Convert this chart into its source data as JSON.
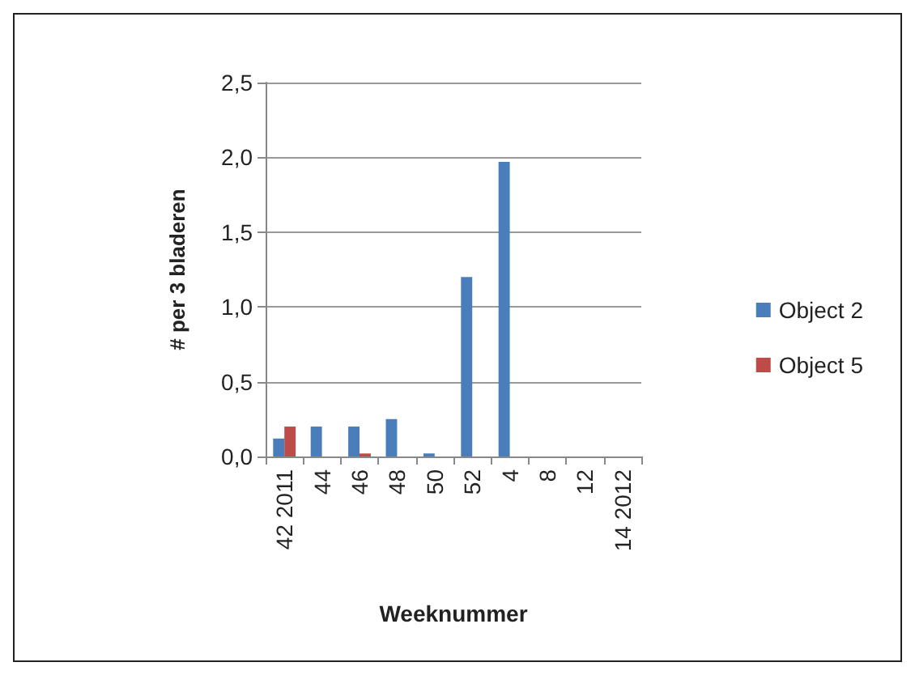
{
  "chart_data": {
    "type": "bar",
    "xlabel": "Weeknummer",
    "ylabel": "# per 3 bladeren",
    "categories": [
      "42 2011",
      "44",
      "46",
      "48",
      "50",
      "52",
      "4",
      "8",
      "12",
      "14 2012"
    ],
    "series": [
      {
        "name": "Object 2",
        "color": "#4a7ebb",
        "values": [
          0.12,
          0.2,
          0.2,
          0.25,
          0.02,
          1.2,
          1.97,
          0,
          0,
          0
        ]
      },
      {
        "name": "Object 5",
        "color": "#be4b48",
        "values": [
          0.2,
          0,
          0.02,
          0,
          0,
          0,
          0,
          0,
          0,
          0
        ]
      }
    ],
    "ylim": [
      0,
      2.5
    ],
    "yticks": [
      {
        "value": 0,
        "label": "0,0"
      },
      {
        "value": 0.5,
        "label": "0,5"
      },
      {
        "value": 1,
        "label": "1,0"
      },
      {
        "value": 1.5,
        "label": "1,5"
      },
      {
        "value": 2,
        "label": "2,0"
      },
      {
        "value": 2.5,
        "label": "2,5"
      }
    ],
    "grid": "y",
    "legend": "right"
  }
}
